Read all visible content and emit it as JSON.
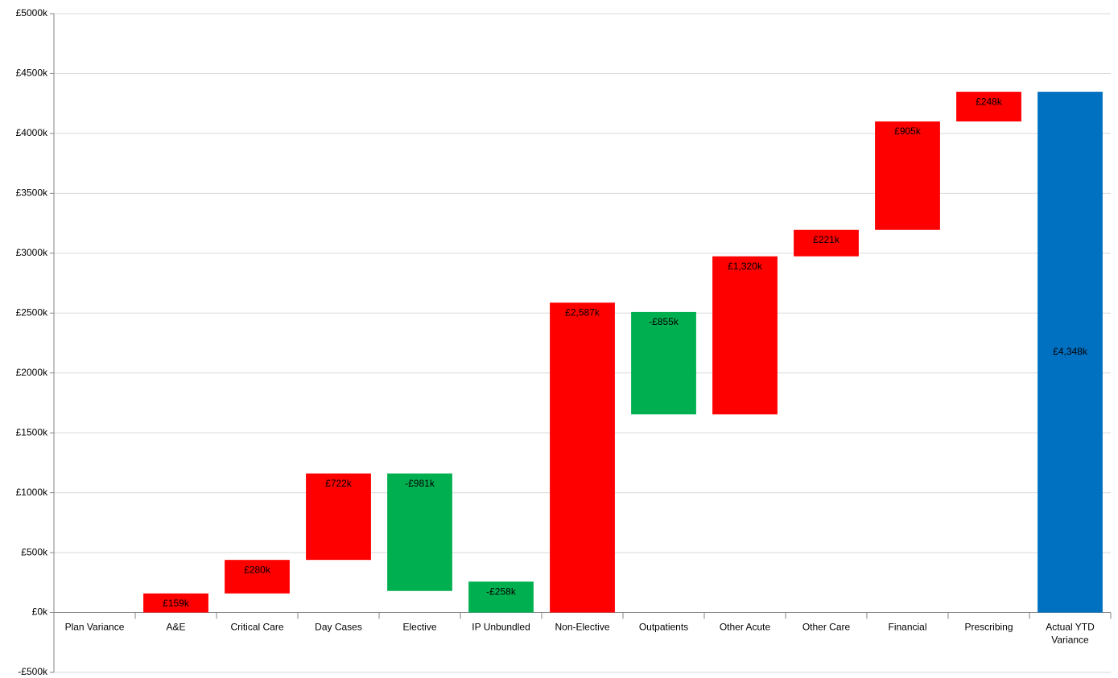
{
  "chart_data": {
    "type": "waterfall",
    "categories": [
      "Plan Variance",
      "A&E",
      "Critical Care",
      "Day Cases",
      "Elective",
      "IP Unbundled",
      "Non-Elective",
      "Outpatients",
      "Other Acute",
      "Other Care",
      "Financial",
      "Prescribing",
      "Actual YTD Variance"
    ],
    "values": [
      0,
      159,
      280,
      722,
      -981,
      -258,
      2587,
      -855,
      1320,
      221,
      905,
      248,
      4348
    ],
    "value_labels": [
      null,
      "£159k",
      "£280k",
      "£722k",
      "-£981k",
      "-£258k",
      "£2,587k",
      "-£855k",
      "£1,320k",
      "£221k",
      "£905k",
      "£248k",
      "£4,348k"
    ],
    "increase_color": "#ff0000",
    "decrease_color": "#00b050",
    "total_color": "#0070c0",
    "ylim": [
      -500,
      5000
    ],
    "yticks": [
      {
        "value": -500,
        "label": "-£500k"
      },
      {
        "value": 0,
        "label": "£0k"
      },
      {
        "value": 500,
        "label": "£500k"
      },
      {
        "value": 1000,
        "label": "£1000k"
      },
      {
        "value": 1500,
        "label": "£1500k"
      },
      {
        "value": 2000,
        "label": "£2000k"
      },
      {
        "value": 2500,
        "label": "£2500k"
      },
      {
        "value": 3000,
        "label": "£3000k"
      },
      {
        "value": 3500,
        "label": "£3500k"
      },
      {
        "value": 4000,
        "label": "£4000k"
      },
      {
        "value": 4500,
        "label": "£4500k"
      },
      {
        "value": 5000,
        "label": "£5000k"
      }
    ],
    "grid": true
  }
}
